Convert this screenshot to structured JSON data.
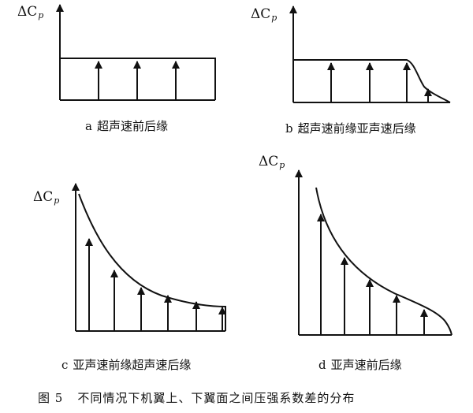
{
  "axis_label": {
    "symbol": "ΔC",
    "subscript": "p"
  },
  "panels": [
    {
      "letter": "a",
      "caption": "超声速前后缘"
    },
    {
      "letter": "b",
      "caption": "超声速前缘亚声速后缘"
    },
    {
      "letter": "c",
      "caption": "亚声速前缘超声速后缘"
    },
    {
      "letter": "d",
      "caption": "亚声速前后缘"
    }
  ],
  "figure_title": {
    "number": "图 5",
    "text": "不同情况下机翼上、下翼面之间压强系数差的分布"
  },
  "colors": {
    "ink": "#111111",
    "background": "#ffffff"
  }
}
